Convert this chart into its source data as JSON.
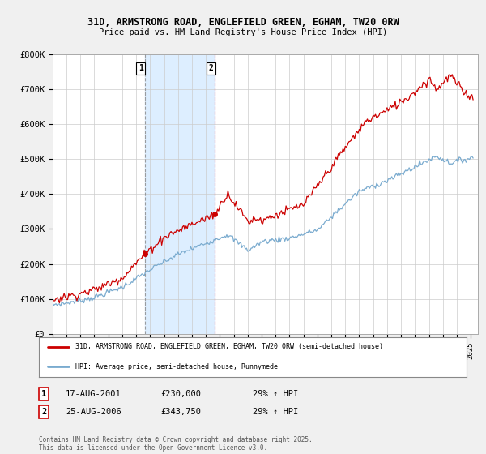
{
  "title_line1": "31D, ARMSTRONG ROAD, ENGLEFIELD GREEN, EGHAM, TW20 0RW",
  "title_line2": "Price paid vs. HM Land Registry's House Price Index (HPI)",
  "ylim": [
    0,
    800000
  ],
  "yticks": [
    0,
    100000,
    200000,
    300000,
    400000,
    500000,
    600000,
    700000,
    800000
  ],
  "ytick_labels": [
    "£0",
    "£100K",
    "£200K",
    "£300K",
    "£400K",
    "£500K",
    "£600K",
    "£700K",
    "£800K"
  ],
  "background_color": "#f0f0f0",
  "plot_bg_color": "#ffffff",
  "grid_color": "#cccccc",
  "red_line_color": "#cc0000",
  "blue_line_color": "#7aabcf",
  "highlight_bg_color": "#ddeeff",
  "purchase1_year": 2001.63,
  "purchase1_price": 230000,
  "purchase2_year": 2006.65,
  "purchase2_price": 343750,
  "legend_label_red": "31D, ARMSTRONG ROAD, ENGLEFIELD GREEN, EGHAM, TW20 0RW (semi-detached house)",
  "legend_label_blue": "HPI: Average price, semi-detached house, Runnymede",
  "table_row1": [
    "1",
    "17-AUG-2001",
    "£230,000",
    "29% ↑ HPI"
  ],
  "table_row2": [
    "2",
    "25-AUG-2006",
    "£343,750",
    "29% ↑ HPI"
  ],
  "footer_text": "Contains HM Land Registry data © Crown copyright and database right 2025.\nThis data is licensed under the Open Government Licence v3.0.",
  "xmin": 1995,
  "xmax": 2025.5,
  "highlight_xmin": 2001.63,
  "highlight_xmax": 2006.65
}
